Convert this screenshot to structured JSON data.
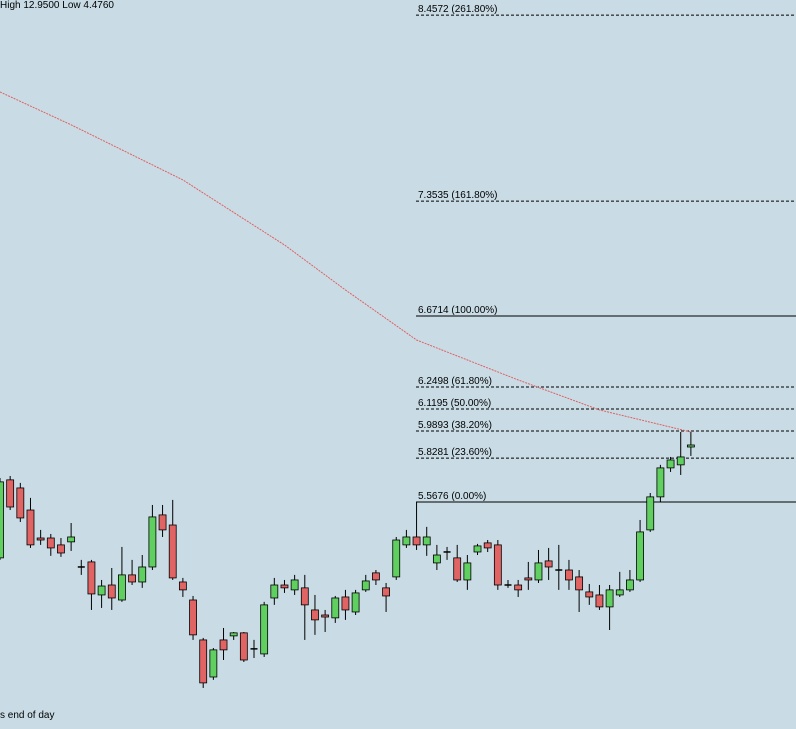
{
  "chart_data": {
    "type": "candlestick",
    "title": "High 12.9500 Low 4.4760",
    "footer": "s end of day",
    "ylim": [
      4.2204,
      8.5468
    ],
    "up_color": "#5fcf5f",
    "down_color": "#e06464",
    "open": [
      5.236,
      5.699,
      5.651,
      5.52,
      5.354,
      5.354,
      5.313,
      5.331,
      5.182,
      5.212,
      5.016,
      5.075,
      4.986,
      5.135,
      5.093,
      5.182,
      5.491,
      5.431,
      5.093,
      4.986,
      4.749,
      4.529,
      4.749,
      4.773,
      4.791,
      4.696,
      4.666,
      4.998,
      5.075,
      5.046,
      5.058,
      4.927,
      4.897,
      4.88,
      5.004,
      4.915,
      5.046,
      5.147,
      5.058,
      5.123,
      5.313,
      5.36,
      5.313,
      5.206,
      5.271,
      5.236,
      5.105,
      5.271,
      5.325,
      5.313,
      5.075,
      5.075,
      5.117,
      5.105,
      5.218,
      5.164,
      5.164,
      5.123,
      5.034,
      5.016,
      4.945,
      5.016,
      5.046,
      5.105,
      5.402,
      5.598,
      5.77,
      5.788,
      5.894
    ],
    "high": [
      5.71,
      5.722,
      5.681,
      5.592,
      5.402,
      5.378,
      5.354,
      5.443,
      5.224,
      5.224,
      5.105,
      5.176,
      5.301,
      5.224,
      5.253,
      5.55,
      5.55,
      5.58,
      5.117,
      5.01,
      4.761,
      4.701,
      4.82,
      4.796,
      4.796,
      4.749,
      4.975,
      5.117,
      5.105,
      5.135,
      5.135,
      5.016,
      4.927,
      5.01,
      5.046,
      5.046,
      5.135,
      5.164,
      5.087,
      5.36,
      5.402,
      5.568,
      5.42,
      5.313,
      5.301,
      5.313,
      5.253,
      5.319,
      5.342,
      5.342,
      5.105,
      5.105,
      5.212,
      5.283,
      5.295,
      5.313,
      5.224,
      5.164,
      5.081,
      5.075,
      5.075,
      5.153,
      5.164,
      5.461,
      5.621,
      5.788,
      5.835,
      5.983,
      5.983
    ],
    "low": [
      5.224,
      5.52,
      5.449,
      5.295,
      5.313,
      5.248,
      5.242,
      5.277,
      5.135,
      4.927,
      4.939,
      4.927,
      4.975,
      5.075,
      5.058,
      5.164,
      5.36,
      5.105,
      5.004,
      4.749,
      4.464,
      4.512,
      4.63,
      4.749,
      4.618,
      4.642,
      4.648,
      4.957,
      5.028,
      5.016,
      4.749,
      4.779,
      4.796,
      4.85,
      4.868,
      4.897,
      5.034,
      5.075,
      4.915,
      5.105,
      5.295,
      5.283,
      5.248,
      5.164,
      5.224,
      5.093,
      5.046,
      5.253,
      5.271,
      5.046,
      5.058,
      5.004,
      5.046,
      5.087,
      5.105,
      5.046,
      5.046,
      4.915,
      4.957,
      4.927,
      4.808,
      5.004,
      5.034,
      5.093,
      5.39,
      5.568,
      5.746,
      5.728,
      5.841
    ],
    "close": [
      5.687,
      5.538,
      5.473,
      5.313,
      5.342,
      5.295,
      5.265,
      5.36,
      5.176,
      5.022,
      5.069,
      4.998,
      5.135,
      5.093,
      5.182,
      5.479,
      5.402,
      5.117,
      5.046,
      4.779,
      4.494,
      4.69,
      4.69,
      4.791,
      4.63,
      4.69,
      4.957,
      5.075,
      5.058,
      5.105,
      4.957,
      4.868,
      4.885,
      4.998,
      4.927,
      5.028,
      5.099,
      5.105,
      5.01,
      5.342,
      5.36,
      5.313,
      5.36,
      5.253,
      5.265,
      5.105,
      5.206,
      5.307,
      5.295,
      5.075,
      5.069,
      5.046,
      5.105,
      5.206,
      5.182,
      5.158,
      5.105,
      5.046,
      5.004,
      4.945,
      5.046,
      5.046,
      5.105,
      5.39,
      5.598,
      5.77,
      5.817,
      5.835,
      5.906
    ],
    "moving_average": {
      "color": "#e06060",
      "x": [
        0,
        7,
        18,
        28,
        34,
        41,
        51,
        59,
        68
      ],
      "values": [
        8.001,
        7.806,
        7.479,
        7.093,
        6.826,
        6.529,
        6.292,
        6.114,
        5.983
      ]
    },
    "fib_levels": [
      {
        "value": 8.4572,
        "label": "8.4572 (261.80%)",
        "style": "dashed"
      },
      {
        "value": 7.3535,
        "label": "7.3535 (161.80%)",
        "style": "dashed"
      },
      {
        "value": 6.6714,
        "label": "6.6714 (100.00%)",
        "style": "solid"
      },
      {
        "value": 6.2498,
        "label": "6.2498 (61.80%)",
        "style": "dashed"
      },
      {
        "value": 6.1195,
        "label": "6.1195 (50.00%)",
        "style": "dashed"
      },
      {
        "value": 5.9893,
        "label": "5.9893 (38.20%)",
        "style": "dashed"
      },
      {
        "value": 5.8281,
        "label": "5.8281 (23.60%)",
        "style": "dashed"
      },
      {
        "value": 5.5676,
        "label": "5.5676 (0.00%)",
        "style": "solid"
      }
    ]
  }
}
